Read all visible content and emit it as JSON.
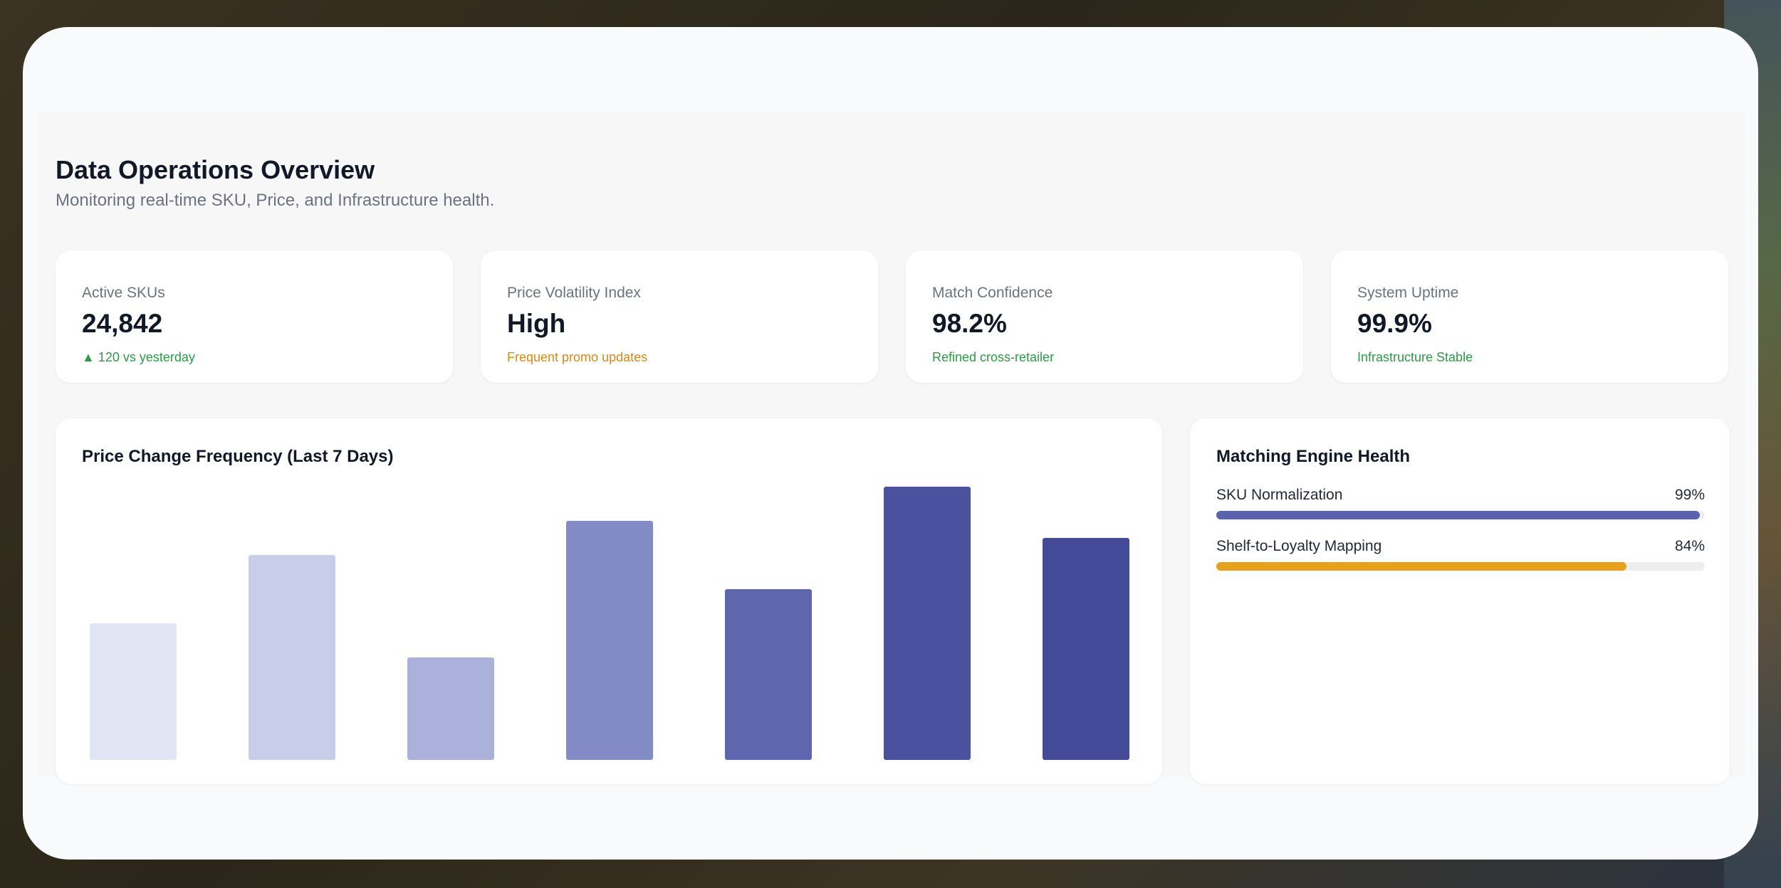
{
  "page": {
    "title": "Data Operations Overview",
    "subtitle": "Monitoring real-time SKU, Price, and Infrastructure health."
  },
  "stats": [
    {
      "label": "Active SKUs",
      "value": "24,842",
      "note": "▲ 120 vs yesterday",
      "note_color": "#2e9a47"
    },
    {
      "label": "Price Volatility Index",
      "value": "High",
      "note": "Frequent promo updates",
      "note_color": "#d98a14"
    },
    {
      "label": "Match Confidence",
      "value": "98.2%",
      "note": "Refined cross-retailer",
      "note_color": "#2e9a47"
    },
    {
      "label": "System Uptime",
      "value": "99.9%",
      "note": "Infrastructure Stable",
      "note_color": "#2e9a47"
    }
  ],
  "chart": {
    "title": "Price Change Frequency (Last 7 Days)"
  },
  "chart_data": {
    "type": "bar",
    "title": "Price Change Frequency (Last 7 Days)",
    "values": [
      40,
      60,
      30,
      70,
      50,
      80,
      65
    ],
    "ylim": [
      0,
      80
    ],
    "colors": [
      "#e2e6f4",
      "#c8cde9",
      "#aab2dc",
      "#828bc6",
      "#5e66ae",
      "#4a52a0",
      "#434b99"
    ],
    "grid": false
  },
  "health": {
    "title": "Matching Engine Health",
    "metrics": [
      {
        "label": "SKU Normalization",
        "value_label": "99%",
        "value": 0.99,
        "color": "#5a62ad"
      },
      {
        "label": "Shelf-to-Loyalty Mapping",
        "value_label": "84%",
        "value": 0.84,
        "color": "#e8a11a"
      }
    ]
  }
}
